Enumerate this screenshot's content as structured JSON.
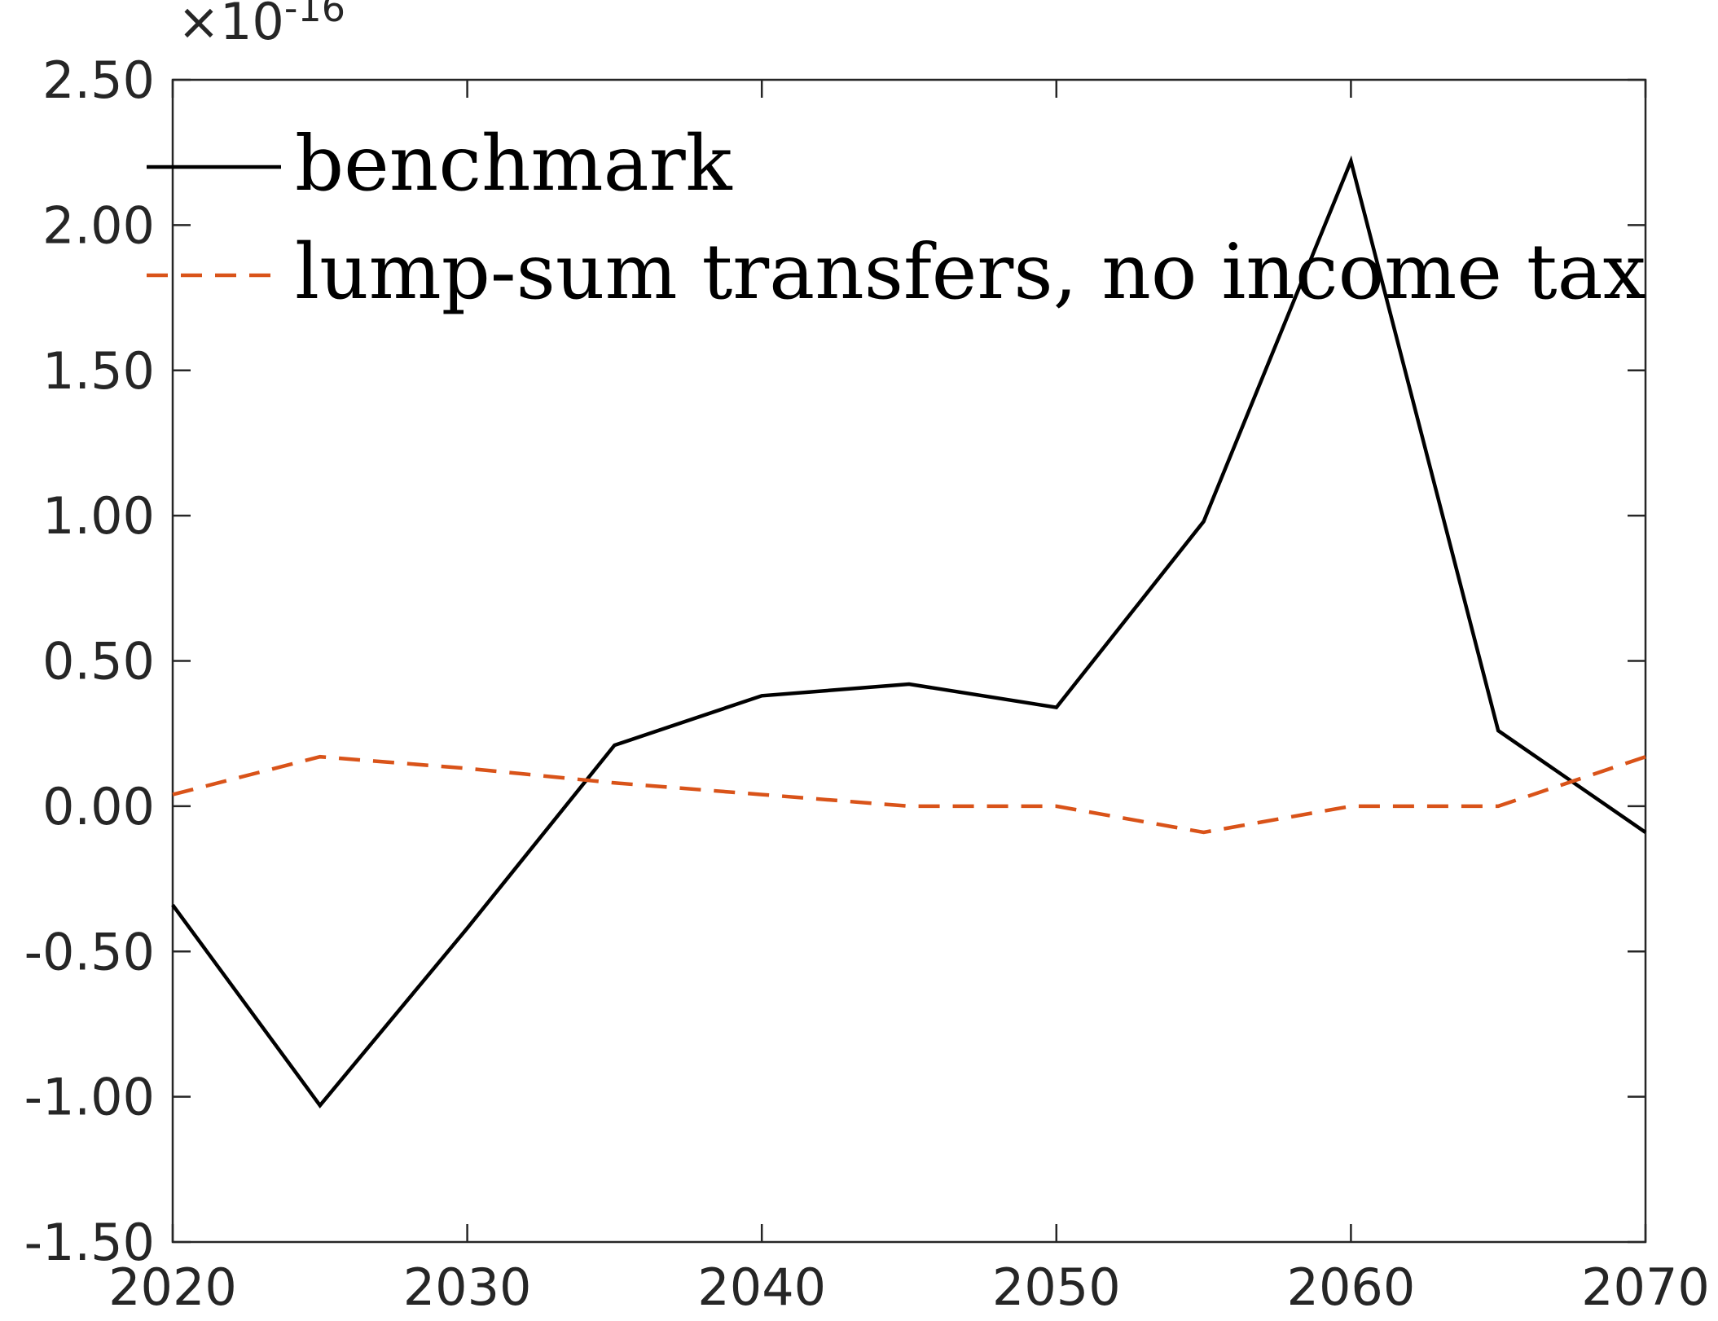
{
  "chart_data": {
    "type": "line",
    "x": [
      2020,
      2025,
      2030,
      2035,
      2040,
      2045,
      2050,
      2055,
      2060,
      2065,
      2070
    ],
    "series": [
      {
        "name": "benchmark",
        "color": "#000000",
        "style": "solid",
        "values": [
          -0.34,
          -1.03,
          -0.42,
          0.21,
          0.38,
          0.42,
          0.34,
          0.98,
          2.22,
          0.26,
          -0.09
        ]
      },
      {
        "name": "lump-sum transfers, no income tax",
        "color": "#d95319",
        "style": "dashed",
        "values": [
          0.04,
          0.17,
          0.13,
          0.08,
          0.04,
          0.0,
          0.0,
          -0.09,
          0.0,
          0.0,
          0.17
        ]
      }
    ],
    "xlim": [
      2020,
      2070
    ],
    "ylim": [
      -1.5,
      2.5
    ],
    "xticks": [
      "2020",
      "2030",
      "2040",
      "2050",
      "2060",
      "2070"
    ],
    "yticks": [
      "2.50",
      "2.00",
      "1.50",
      "1.00",
      "0.50",
      "0.00",
      "-0.50",
      "-1.00",
      "-1.50"
    ],
    "y_exponent": {
      "base": "×10",
      "power": "-16"
    },
    "legend_position": "top-left",
    "grid": false,
    "xlabel": "",
    "ylabel": "",
    "title": ""
  }
}
